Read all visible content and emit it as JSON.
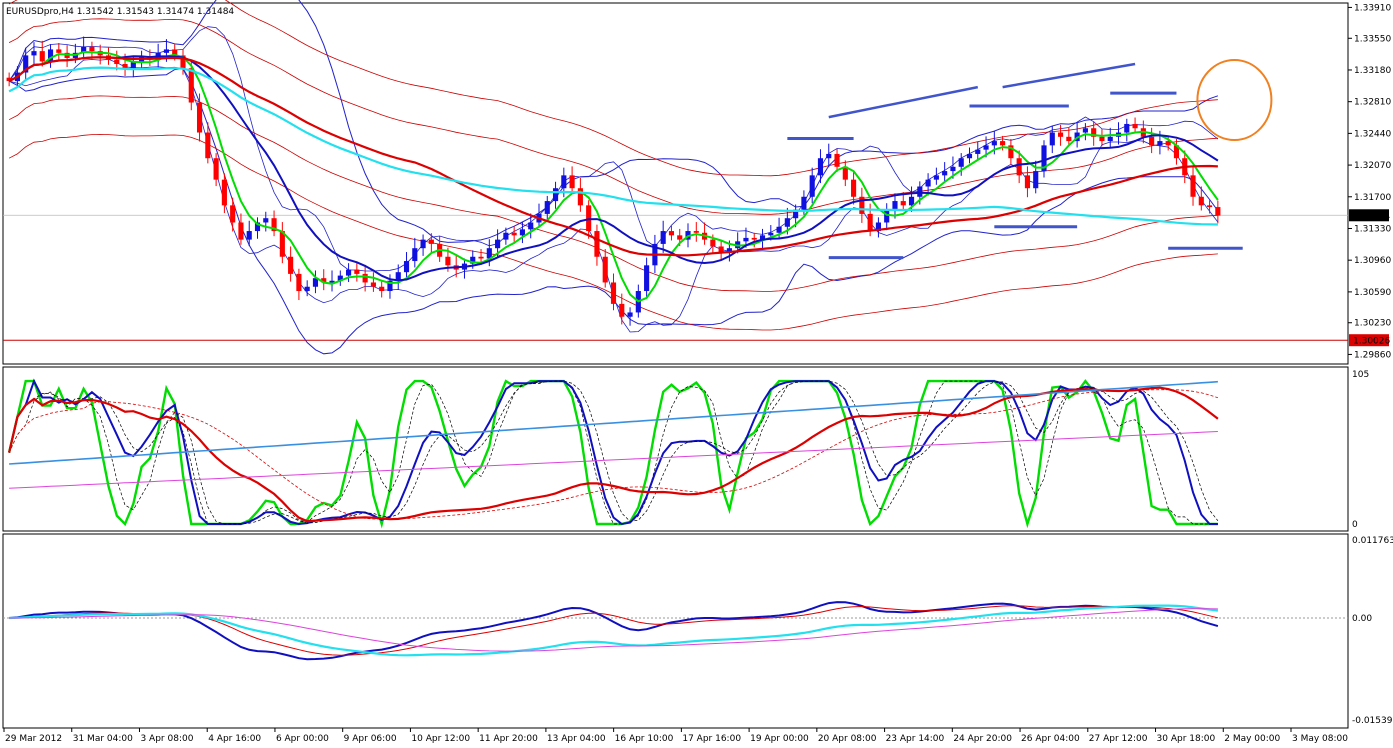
{
  "window": {
    "symbol_title": "EURUSDpro,H4  1.31542 1.31543 1.31474 1.31484"
  },
  "colors": {
    "bull": "#1010e0",
    "bear": "#ff0000",
    "ma_green": "#00dd00",
    "ma_blue": "#1010c0",
    "ma_red": "#dd0000",
    "ma_cyan": "#22e0ee",
    "band_blue": "#2222cc",
    "band_red": "#cc0000",
    "annot_line": "#4055cc",
    "annot_circle": "#f08020",
    "pink": "#dd44dd",
    "sky": "#3a90e0"
  },
  "chart_data": [
    {
      "type": "candlestick",
      "title": "EURUSDpro,H4  1.31542 1.31543 1.31474 1.31484",
      "current_price_label": "1.31484",
      "marked_level_label": "1.30026",
      "y_ticks": [
        "1.33910",
        "1.33550",
        "1.33180",
        "1.32810",
        "1.32440",
        "1.32070",
        "1.31700",
        "1.31330",
        "1.30960",
        "1.30590",
        "1.30230",
        "1.29860"
      ],
      "ylim": [
        1.2976,
        1.3395
      ],
      "x_ticks": [
        "29 Mar 2012",
        "31 Mar 04:00",
        "3 Apr 08:00",
        "4 Apr 16:00",
        "6 Apr 00:00",
        "9 Apr 06:00",
        "10 Apr 12:00",
        "11 Apr 20:00",
        "13 Apr 04:00",
        "16 Apr 10:00",
        "17 Apr 16:00",
        "19 Apr 00:00",
        "20 Apr 08:00",
        "23 Apr 14:00",
        "24 Apr 20:00",
        "26 Apr 04:00",
        "27 Apr 12:00",
        "30 Apr 18:00",
        "2 May 00:00",
        "3 May 08:00"
      ],
      "close": [
        1.3305,
        1.3315,
        1.3335,
        1.334,
        1.3328,
        1.3342,
        1.3338,
        1.3332,
        1.3338,
        1.3345,
        1.334,
        1.3335,
        1.333,
        1.3325,
        1.332,
        1.3327,
        1.3333,
        1.333,
        1.3338,
        1.3342,
        1.3335,
        1.332,
        1.328,
        1.3245,
        1.3215,
        1.319,
        1.316,
        1.314,
        1.312,
        1.313,
        1.314,
        1.3145,
        1.313,
        1.31,
        1.308,
        1.306,
        1.3065,
        1.3075,
        1.307,
        1.3072,
        1.3078,
        1.3085,
        1.308,
        1.307,
        1.3065,
        1.306,
        1.3072,
        1.3082,
        1.3095,
        1.311,
        1.312,
        1.3115,
        1.31,
        1.309,
        1.3085,
        1.3092,
        1.31,
        1.3098,
        1.311,
        1.312,
        1.3128,
        1.3125,
        1.3132,
        1.314,
        1.315,
        1.3165,
        1.318,
        1.3195,
        1.318,
        1.316,
        1.313,
        1.31,
        1.307,
        1.3045,
        1.303,
        1.3035,
        1.306,
        1.309,
        1.3115,
        1.313,
        1.3125,
        1.312,
        1.313,
        1.3128,
        1.312,
        1.3112,
        1.3105,
        1.311,
        1.3118,
        1.3122,
        1.312,
        1.3125,
        1.3128,
        1.3135,
        1.3145,
        1.3155,
        1.317,
        1.3195,
        1.3215,
        1.322,
        1.3205,
        1.319,
        1.317,
        1.315,
        1.313,
        1.314,
        1.3155,
        1.3165,
        1.316,
        1.317,
        1.3182,
        1.319,
        1.3195,
        1.32,
        1.3205,
        1.3215,
        1.322,
        1.3225,
        1.323,
        1.3235,
        1.323,
        1.3215,
        1.3195,
        1.318,
        1.32,
        1.323,
        1.3245,
        1.324,
        1.3235,
        1.3245,
        1.325,
        1.324,
        1.3235,
        1.324,
        1.3245,
        1.3255,
        1.325,
        1.324,
        1.323,
        1.3235,
        1.323,
        1.3215,
        1.3195,
        1.317,
        1.316,
        1.3158,
        1.3148
      ]
    },
    {
      "type": "line",
      "title": "",
      "ylim": [
        0,
        105
      ],
      "y_ticks": [
        "105",
        "0"
      ],
      "series_note": "stochastic-style oscillator (green, blue) with moving averages"
    },
    {
      "type": "line",
      "title": "",
      "ylim": [
        -0.01539,
        0.01176
      ],
      "y_ticks": [
        "0.011763",
        "0.00",
        "-0.01539"
      ]
    }
  ]
}
